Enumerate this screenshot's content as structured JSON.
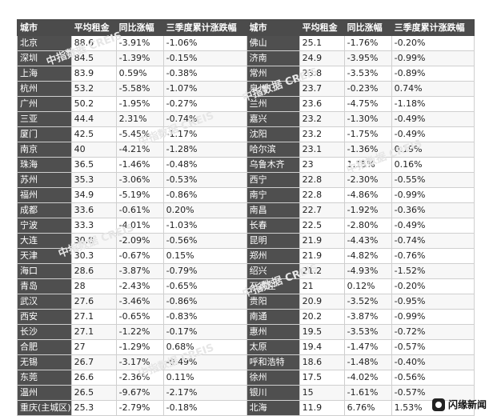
{
  "headers": [
    "城市",
    "平均租金",
    "同比涨幅",
    "三季度累计涨跌幅",
    "城市",
    "平均租金",
    "同比涨幅",
    "三季度累计涨跌幅"
  ],
  "rows": [
    [
      [
        "北京",
        "88.6",
        "-3.91%",
        "-1.06%"
      ],
      [
        "佛山",
        "25.1",
        "-1.76%",
        "-0.20%"
      ]
    ],
    [
      [
        "深圳",
        "84.5",
        "-1.39%",
        "-0.15%"
      ],
      [
        "济南",
        "24.9",
        "-3.95%",
        "-0.99%"
      ]
    ],
    [
      [
        "上海",
        "83.9",
        "0.59%",
        "-0.38%"
      ],
      [
        "常州",
        "23.8",
        "-3.53%",
        "-0.89%"
      ]
    ],
    [
      [
        "杭州",
        "53.2",
        "-5.58%",
        "-1.07%"
      ],
      [
        "泉州",
        "23.7",
        "-0.23%",
        "0.74%"
      ]
    ],
    [
      [
        "广州",
        "50.2",
        "-1.95%",
        "-0.27%"
      ],
      [
        "兰州",
        "23.6",
        "-4.75%",
        "-1.18%"
      ]
    ],
    [
      [
        "三亚",
        "44.4",
        "2.31%",
        "-0.74%"
      ],
      [
        "嘉兴",
        "23.2",
        "-1.30%",
        "-0.49%"
      ]
    ],
    [
      [
        "厦门",
        "42.5",
        "-5.45%",
        "-1.17%"
      ],
      [
        "沈阳",
        "23.2",
        "-1.75%",
        "-0.49%"
      ]
    ],
    [
      [
        "南京",
        "40",
        "-4.21%",
        "-1.28%"
      ],
      [
        "哈尔滨",
        "23.1",
        "-1.36%",
        "0.19%"
      ]
    ],
    [
      [
        "珠海",
        "36.5",
        "-1.46%",
        "-0.48%"
      ],
      [
        "乌鲁木齐",
        "23",
        "1.15%",
        "0.16%"
      ]
    ],
    [
      [
        "苏州",
        "35.3",
        "-3.06%",
        "-0.53%"
      ],
      [
        "西宁",
        "22.8",
        "-2.30%",
        "-0.55%"
      ]
    ],
    [
      [
        "福州",
        "34.9",
        "-5.19%",
        "-0.86%"
      ],
      [
        "南宁",
        "22.8",
        "-4.86%",
        "-0.99%"
      ]
    ],
    [
      [
        "成都",
        "33.6",
        "-0.61%",
        "0.20%"
      ],
      [
        "南昌",
        "22.7",
        "-1.92%",
        "-0.36%"
      ]
    ],
    [
      [
        "宁波",
        "33.3",
        "-4.01%",
        "-1.03%"
      ],
      [
        "长春",
        "22.5",
        "-2.80%",
        "-0.49%"
      ]
    ],
    [
      [
        "大连",
        "30.8",
        "-2.09%",
        "-0.56%"
      ],
      [
        "昆明",
        "21.9",
        "-4.43%",
        "-0.74%"
      ]
    ],
    [
      [
        "天津",
        "30.3",
        "-0.67%",
        "0.15%"
      ],
      [
        "郑州",
        "21.9",
        "-4.82%",
        "-0.76%"
      ]
    ],
    [
      [
        "海口",
        "28.6",
        "-3.87%",
        "-0.79%"
      ],
      [
        "绍兴",
        "21.2",
        "-4.93%",
        "-1.52%"
      ]
    ],
    [
      [
        "青岛",
        "28",
        "-2.43%",
        "-0.65%"
      ],
      [
        "石家庄",
        "21",
        "0.12%",
        "-0.20%"
      ]
    ],
    [
      [
        "武汉",
        "27.6",
        "-3.46%",
        "-0.86%"
      ],
      [
        "贵阳",
        "20.9",
        "-3.52%",
        "-0.95%"
      ]
    ],
    [
      [
        "西安",
        "27.1",
        "-0.65%",
        "-0.83%"
      ],
      [
        "南通",
        "20.2",
        "-3.87%",
        "-0.99%"
      ]
    ],
    [
      [
        "长沙",
        "27.1",
        "-1.22%",
        "-0.17%"
      ],
      [
        "惠州",
        "19.5",
        "-3.53%",
        "-0.72%"
      ]
    ],
    [
      [
        "合肥",
        "27",
        "-1.29%",
        "0.68%"
      ],
      [
        "太原",
        "19.4",
        "-1.47%",
        "-0.57%"
      ]
    ],
    [
      [
        "无锡",
        "26.7",
        "-3.17%",
        "-0.49%"
      ],
      [
        "呼和浩特",
        "18.6",
        "-1.48%",
        "-0.40%"
      ]
    ],
    [
      [
        "东莞",
        "26.6",
        "-2.36%",
        "0.11%"
      ],
      [
        "徐州",
        "17.5",
        "-4.02%",
        "-0.56%"
      ]
    ],
    [
      [
        "温州",
        "26.5",
        "-9.67%",
        "-2.17%"
      ],
      [
        "银川",
        "15",
        "-1.61%",
        "-0.57%"
      ]
    ],
    [
      [
        "重庆(主城区)",
        "25.3",
        "-2.79%",
        "-0.18%"
      ],
      [
        "北海",
        "11.9",
        "6.76%",
        "1.53%"
      ]
    ]
  ],
  "watermark_text": "中指数据 CREIS",
  "brand": {
    "name": "闪缘新闻",
    "icon": "brand-logo-icon"
  }
}
